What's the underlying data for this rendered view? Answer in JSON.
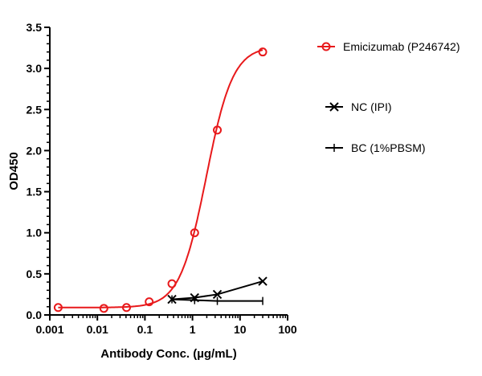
{
  "chart_data": {
    "type": "scatter",
    "title": "",
    "xlabel": "Antibody Conc. (µg/mL)",
    "ylabel": "OD450",
    "xscale": "log",
    "xlim": [
      0.001,
      100
    ],
    "ylim": [
      0,
      3.5
    ],
    "xticks": [
      "0.001",
      "0.01",
      "0.1",
      "1",
      "10",
      "100"
    ],
    "yticks": [
      "0.0",
      "0.5",
      "1.0",
      "1.5",
      "2.0",
      "2.5",
      "3.0",
      "3.5"
    ],
    "grid": false,
    "legend_position": "right",
    "series": [
      {
        "name": "Emicizumab (P246742)",
        "color": "#e8191b",
        "marker": "open-circle",
        "fit": "sigmoidal",
        "x": [
          0.0015,
          0.0137,
          0.041,
          0.123,
          0.37,
          1.11,
          3.33,
          30
        ],
        "y": [
          0.09,
          0.08,
          0.09,
          0.16,
          0.38,
          1.0,
          2.25,
          3.2
        ]
      },
      {
        "name": "NC (IPI)",
        "color": "#000000",
        "marker": "x",
        "x": [
          0.37,
          1.11,
          3.33,
          30
        ],
        "y": [
          0.19,
          0.21,
          0.25,
          0.41
        ]
      },
      {
        "name": "BC (1%PBSM)",
        "color": "#000000",
        "marker": "plus",
        "x": [
          0.37,
          1.11,
          3.33,
          30
        ],
        "y": [
          0.19,
          0.18,
          0.17,
          0.17
        ]
      }
    ]
  }
}
